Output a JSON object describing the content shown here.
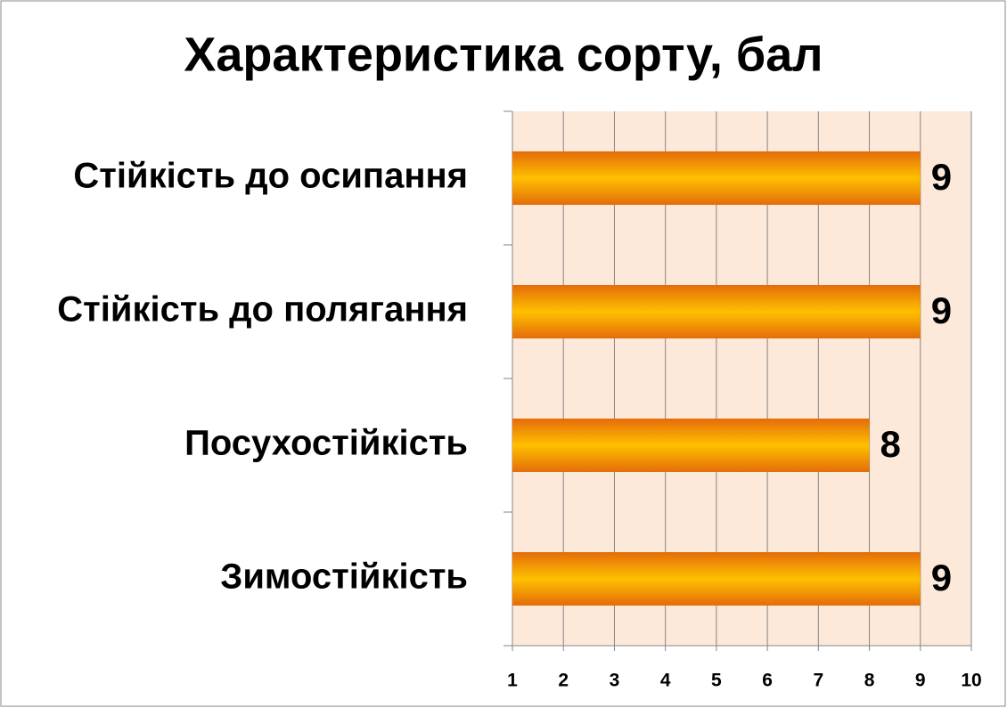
{
  "chart_data": {
    "type": "bar",
    "orientation": "horizontal",
    "title": "Характеристика сорту, бал",
    "categories": [
      "Стійкість до осипання",
      "Стійкість до полягання",
      "Посухостійкість",
      "Зимостійкість"
    ],
    "values": [
      9,
      9,
      8,
      9
    ],
    "color": "#ffc000",
    "xlim": [
      1,
      10
    ],
    "xticks": [
      1,
      2,
      3,
      4,
      5,
      6,
      7,
      8,
      9,
      10
    ],
    "grid": true
  }
}
